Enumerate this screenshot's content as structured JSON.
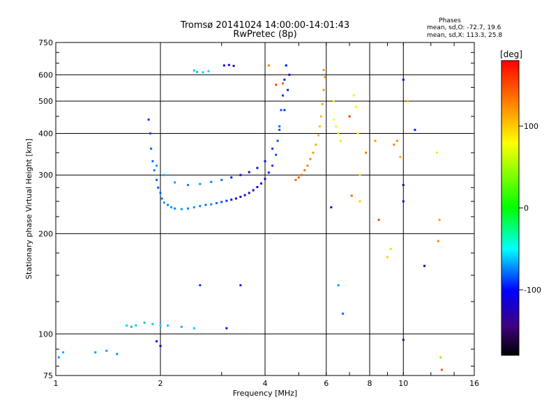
{
  "chart_data": {
    "type": "scatter",
    "title": "Tromsø 20141024 14:00:00-14:01:43",
    "subtitle": "RwPretec (8p)",
    "xlabel": "Frequency [MHz]",
    "ylabel": "Stationary phase Virtual Height [km]",
    "x_scale": "log",
    "y_scale": "log",
    "xlim": [
      1,
      16
    ],
    "ylim": [
      75,
      750
    ],
    "grid": true,
    "x_ticks": [
      1,
      2,
      4,
      6,
      8,
      10,
      16
    ],
    "x_tick_labels": [
      "1",
      "2",
      "4",
      "6",
      "8",
      "10",
      "16"
    ],
    "y_ticks": [
      75,
      100,
      200,
      300,
      400,
      500,
      600,
      750
    ],
    "y_tick_labels": [
      "75",
      "100",
      "200",
      "300",
      "400",
      "500",
      "600",
      "750"
    ],
    "phase_stats": {
      "title": "Phases",
      "line_o": "mean, sd,O: -72.7, 19.6",
      "line_x": "mean, sd,X: 113.3, 25.8"
    },
    "colorbar": {
      "label": "[deg]",
      "ticks": [
        100,
        0,
        -100
      ],
      "tick_labels": [
        "100",
        "0",
        "-100"
      ],
      "range": [
        -180,
        180
      ]
    },
    "series": [
      {
        "color_by": "phase_deg",
        "points_note": "O-mode trace (bottom-side ~2.0-2.8 MHz at 240-300 km, rising toward 4.5-5.5 MHz up to ~650 km)",
        "points": [
          [
            1.85,
            440,
            -90
          ],
          [
            1.87,
            400,
            -85
          ],
          [
            1.88,
            360,
            -80
          ],
          [
            1.9,
            330,
            -80
          ],
          [
            1.92,
            310,
            -75
          ],
          [
            1.95,
            290,
            -80
          ],
          [
            1.97,
            275,
            -85
          ],
          [
            2.0,
            265,
            -80
          ],
          [
            2.02,
            255,
            -75
          ],
          [
            2.05,
            248,
            -70
          ],
          [
            2.1,
            244,
            -75
          ],
          [
            2.15,
            240,
            -70
          ],
          [
            2.2,
            238,
            -75
          ],
          [
            2.3,
            237,
            -70
          ],
          [
            2.4,
            238,
            -75
          ],
          [
            2.5,
            240,
            -70
          ],
          [
            2.6,
            242,
            -75
          ],
          [
            2.7,
            244,
            -80
          ],
          [
            2.8,
            245,
            -75
          ],
          [
            2.9,
            247,
            -80
          ],
          [
            3.0,
            249,
            -85
          ],
          [
            3.1,
            251,
            -90
          ],
          [
            3.2,
            253,
            -100
          ],
          [
            3.3,
            255,
            -105
          ],
          [
            3.4,
            258,
            -110
          ],
          [
            3.5,
            261,
            -115
          ],
          [
            3.6,
            265,
            -120
          ],
          [
            3.7,
            270,
            -115
          ],
          [
            3.8,
            276,
            -110
          ],
          [
            3.9,
            283,
            -105
          ],
          [
            4.0,
            292,
            -100
          ],
          [
            4.1,
            305,
            -95
          ],
          [
            4.2,
            320,
            -90
          ],
          [
            4.3,
            345,
            -85
          ],
          [
            4.35,
            380,
            -85
          ],
          [
            4.4,
            420,
            -80
          ],
          [
            4.45,
            470,
            -85
          ],
          [
            4.5,
            520,
            -90
          ],
          [
            4.55,
            580,
            -95
          ],
          [
            4.6,
            640,
            -100
          ],
          [
            1.95,
            320,
            -70
          ],
          [
            2.05,
            300,
            -65
          ],
          [
            2.2,
            285,
            -70
          ],
          [
            2.4,
            280,
            -75
          ],
          [
            2.6,
            282,
            -70
          ],
          [
            2.8,
            286,
            -75
          ],
          [
            3.0,
            290,
            -80
          ],
          [
            3.2,
            295,
            -95
          ],
          [
            3.4,
            300,
            -110
          ],
          [
            3.6,
            306,
            -115
          ],
          [
            3.8,
            315,
            -105
          ],
          [
            4.0,
            330,
            -95
          ],
          [
            4.2,
            360,
            -90
          ],
          [
            4.4,
            410,
            -85
          ],
          [
            4.55,
            470,
            -90
          ],
          [
            4.65,
            540,
            -95
          ],
          [
            4.7,
            600,
            -100
          ],
          [
            2.5,
            618,
            -60
          ],
          [
            2.55,
            612,
            -62
          ],
          [
            2.65,
            610,
            -60
          ],
          [
            2.75,
            615,
            -58
          ],
          [
            3.05,
            640,
            -110
          ],
          [
            3.15,
            642,
            -120
          ],
          [
            3.25,
            638,
            -115
          ],
          [
            1.6,
            106,
            -60
          ],
          [
            1.65,
            105,
            -65
          ],
          [
            1.7,
            106,
            -60
          ],
          [
            1.8,
            108,
            -62
          ],
          [
            1.9,
            107,
            -60
          ],
          [
            2.0,
            106,
            -58
          ],
          [
            2.1,
            106,
            -62
          ],
          [
            2.3,
            105,
            -65
          ],
          [
            2.5,
            104,
            -60
          ],
          [
            3.1,
            104,
            -110
          ],
          [
            1.02,
            85,
            -70
          ],
          [
            1.05,
            88,
            -65
          ],
          [
            1.3,
            88,
            -70
          ],
          [
            1.4,
            89,
            -68
          ],
          [
            1.5,
            87,
            -72
          ],
          [
            1.95,
            95,
            -110
          ],
          [
            2.0,
            92,
            -100
          ],
          [
            2.6,
            140,
            -90
          ],
          [
            3.4,
            140,
            -95
          ]
        ]
      },
      {
        "color_by": "phase_deg",
        "points_note": "X-mode trace (4.5-6 MHz, 290-620 km) and scattered high-frequency echoes",
        "points": [
          [
            4.9,
            290,
            140
          ],
          [
            5.0,
            295,
            145
          ],
          [
            5.1,
            300,
            140
          ],
          [
            5.2,
            310,
            135
          ],
          [
            5.3,
            320,
            130
          ],
          [
            5.4,
            335,
            125
          ],
          [
            5.5,
            350,
            120
          ],
          [
            5.6,
            370,
            115
          ],
          [
            5.7,
            395,
            110
          ],
          [
            5.75,
            420,
            105
          ],
          [
            5.8,
            450,
            110
          ],
          [
            5.85,
            490,
            115
          ],
          [
            5.9,
            540,
            120
          ],
          [
            5.95,
            590,
            125
          ],
          [
            5.9,
            620,
            120
          ],
          [
            4.3,
            560,
            150
          ],
          [
            4.5,
            565,
            145
          ],
          [
            4.1,
            640,
            130
          ],
          [
            6.3,
            440,
            80
          ],
          [
            6.4,
            420,
            75
          ],
          [
            6.5,
            400,
            70
          ],
          [
            6.6,
            380,
            65
          ],
          [
            6.3,
            500,
            90
          ],
          [
            7.2,
            520,
            70
          ],
          [
            7.3,
            480,
            75
          ],
          [
            7.4,
            400,
            80
          ],
          [
            7.5,
            300,
            90
          ],
          [
            7.5,
            250,
            100
          ],
          [
            7.8,
            350,
            130
          ],
          [
            8.3,
            380,
            120
          ],
          [
            8.5,
            220,
            150
          ],
          [
            9.0,
            170,
            100
          ],
          [
            9.2,
            180,
            95
          ],
          [
            9.4,
            370,
            130
          ],
          [
            9.6,
            380,
            125
          ],
          [
            9.8,
            340,
            110
          ],
          [
            10.3,
            500,
            110
          ],
          [
            10.8,
            410,
            -95
          ],
          [
            11.5,
            160,
            -120
          ],
          [
            12.5,
            350,
            90
          ],
          [
            12.6,
            190,
            130
          ],
          [
            12.7,
            220,
            120
          ],
          [
            12.8,
            85,
            40
          ],
          [
            12.9,
            78,
            150
          ],
          [
            10.0,
            250,
            -120
          ],
          [
            10.0,
            580,
            -100
          ],
          [
            10.0,
            280,
            -130
          ],
          [
            10.0,
            96,
            -140
          ],
          [
            6.2,
            240,
            -110
          ],
          [
            6.5,
            140,
            -70
          ],
          [
            6.7,
            115,
            -80
          ],
          [
            7.0,
            450,
            160
          ],
          [
            7.1,
            260,
            140
          ]
        ]
      }
    ]
  }
}
